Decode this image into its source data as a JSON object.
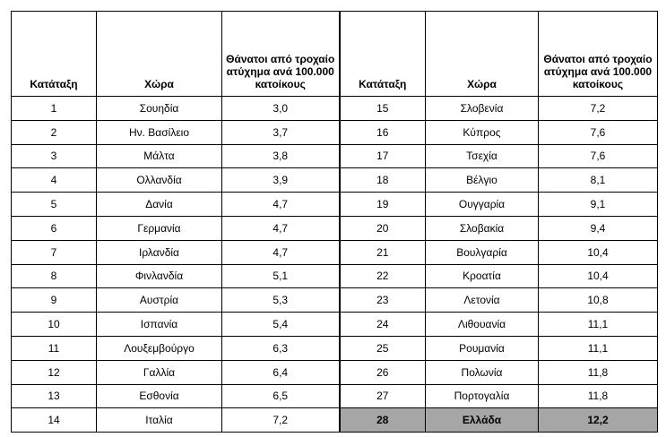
{
  "table": {
    "headers": [
      "Κατάταξη",
      "Χώρα",
      "Θάνατοι από τροχαίο ατύχημα ανά 100.000 κατοίκους",
      "Κατάταξη",
      "Χώρα",
      "Θάνατοι από τροχαίο ατύχημα ανά 100.000 κατοίκους"
    ],
    "rows": [
      [
        1,
        "Σουηδία",
        "3,0",
        15,
        "Σλοβενία",
        "7,2"
      ],
      [
        2,
        "Ην. Βασίλειο",
        "3,7",
        16,
        "Κύπρος",
        "7,6"
      ],
      [
        3,
        "Μάλτα",
        "3,8",
        17,
        "Τσεχία",
        "7,6"
      ],
      [
        4,
        "Ολλανδία",
        "3,9",
        18,
        "Βέλγιο",
        "8,1"
      ],
      [
        5,
        "Δανία",
        "4,7",
        19,
        "Ουγγαρία",
        "9,1"
      ],
      [
        6,
        "Γερμανία",
        "4,7",
        20,
        "Σλοβακία",
        "9,4"
      ],
      [
        7,
        "Ιρλανδία",
        "4,7",
        21,
        "Βουλγαρία",
        "10,4"
      ],
      [
        8,
        "Φινλανδία",
        "5,1",
        22,
        "Κροατία",
        "10,4"
      ],
      [
        9,
        "Αυστρία",
        "5,3",
        23,
        "Λετονία",
        "10,8"
      ],
      [
        10,
        "Ισπανία",
        "5,4",
        24,
        "Λιθουανία",
        "11,1"
      ],
      [
        11,
        "Λουξεμβούργο",
        "6,3",
        25,
        "Ρουμανία",
        "11,1"
      ],
      [
        12,
        "Γαλλία",
        "6,4",
        26,
        "Πολωνία",
        "11,8"
      ],
      [
        13,
        "Εσθονία",
        "6,5",
        27,
        "Πορτογαλία",
        "11,8"
      ],
      [
        14,
        "Ιταλία",
        "7,2",
        28,
        "Ελλάδα",
        "12,2"
      ]
    ]
  }
}
